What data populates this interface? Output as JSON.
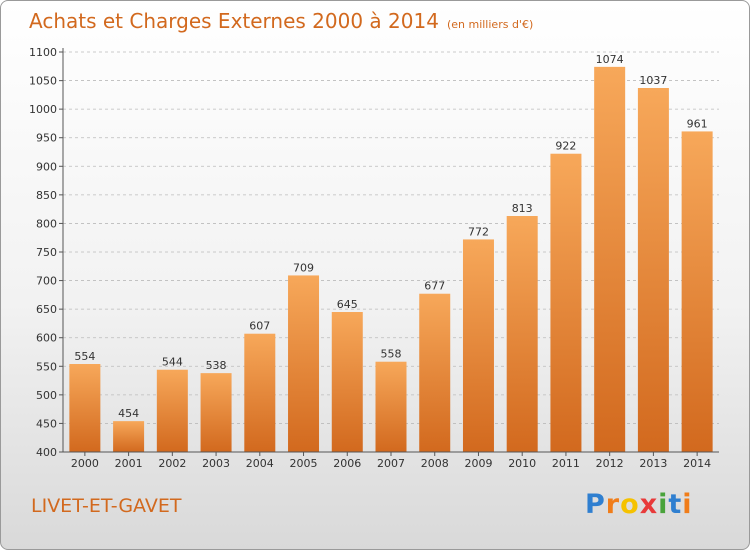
{
  "title": "Achats et Charges Externes 2000 à 2014",
  "subtitle": "(en milliers d'€)",
  "city": "LIVET-ET-GAVET",
  "brand": {
    "text": "Proxiti",
    "letters": [
      {
        "char": "P",
        "color": "#2f7fd0"
      },
      {
        "char": "r",
        "color": "#f07d1a"
      },
      {
        "char": "o",
        "color": "#f5c200"
      },
      {
        "char": "x",
        "color": "#e83a3a"
      },
      {
        "char": "i",
        "color": "#49a33b"
      },
      {
        "char": "t",
        "color": "#2f7fd0"
      },
      {
        "char": "i",
        "color": "#f07d1a"
      }
    ]
  },
  "colors": {
    "bar_light": "#f7a85a",
    "bar_dark": "#d2691e",
    "accent": "#d2691e",
    "grid": "#bbbbbb"
  },
  "chart_data": {
    "type": "bar",
    "title": "Achats et Charges Externes 2000 à 2014",
    "subtitle": "(en milliers d'€)",
    "xlabel": "",
    "ylabel": "",
    "categories": [
      "2000",
      "2001",
      "2002",
      "2003",
      "2004",
      "2005",
      "2006",
      "2007",
      "2008",
      "2009",
      "2010",
      "2011",
      "2012",
      "2013",
      "2014"
    ],
    "values": [
      554,
      454,
      544,
      538,
      607,
      709,
      645,
      558,
      677,
      772,
      813,
      922,
      1074,
      1037,
      961
    ],
    "ylim": [
      400,
      1100
    ],
    "yticks": [
      400,
      450,
      500,
      550,
      600,
      650,
      700,
      750,
      800,
      850,
      900,
      950,
      1000,
      1050,
      1100
    ],
    "grid": true,
    "legend": "none"
  }
}
